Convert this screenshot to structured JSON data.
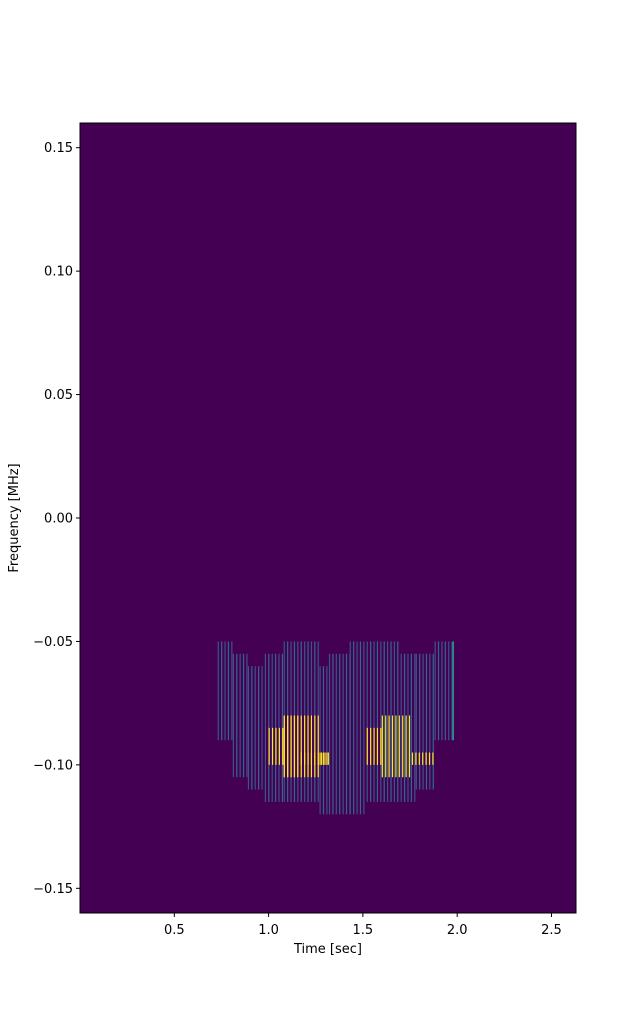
{
  "chart_data": {
    "type": "heatmap",
    "title": "",
    "xlabel": "Time [sec]",
    "ylabel": "Frequency [MHz]",
    "xlim": [
      0.0,
      2.63
    ],
    "ylim": [
      -0.16,
      0.16
    ],
    "x_ticks": [
      0.5,
      1.0,
      1.5,
      2.0,
      2.5
    ],
    "x_tick_labels": [
      "0.5",
      "1.0",
      "1.5",
      "2.0",
      "2.5"
    ],
    "y_ticks": [
      0.15,
      0.1,
      0.05,
      0.0,
      -0.05,
      -0.1,
      -0.15
    ],
    "y_tick_labels": [
      "0.15",
      "0.10",
      "0.05",
      "0.00",
      "−0.05",
      "−0.10",
      "−0.15"
    ],
    "colormap": "viridis",
    "background_color": "#440154",
    "column_width_sec": 0.009,
    "grid": false,
    "legend": "none",
    "low_energy_columns": [
      {
        "t_start": 0.73,
        "t_end": 0.81,
        "f_low": -0.09,
        "f_high": -0.05,
        "color": "#3b528b"
      },
      {
        "t_start": 0.81,
        "t_end": 0.89,
        "f_low": -0.105,
        "f_high": -0.055,
        "color": "#3b528b"
      },
      {
        "t_start": 0.89,
        "t_end": 0.98,
        "f_low": -0.11,
        "f_high": -0.06,
        "color": "#3b528b"
      },
      {
        "t_start": 0.98,
        "t_end": 1.08,
        "f_low": -0.115,
        "f_high": -0.055,
        "color": "#3b528b"
      },
      {
        "t_start": 1.08,
        "t_end": 1.27,
        "f_low": -0.115,
        "f_high": -0.05,
        "color": "#3b528b"
      },
      {
        "t_start": 1.27,
        "t_end": 1.32,
        "f_low": -0.12,
        "f_high": -0.06,
        "color": "#3b528b"
      },
      {
        "t_start": 1.32,
        "t_end": 1.43,
        "f_low": -0.12,
        "f_high": -0.055,
        "color": "#3b528b"
      },
      {
        "t_start": 1.43,
        "t_end": 1.52,
        "f_low": -0.12,
        "f_high": -0.05,
        "color": "#3b528b"
      },
      {
        "t_start": 1.52,
        "t_end": 1.7,
        "f_low": -0.115,
        "f_high": -0.05,
        "color": "#3b528b"
      },
      {
        "t_start": 1.7,
        "t_end": 1.78,
        "f_low": -0.115,
        "f_high": -0.055,
        "color": "#3b528b"
      },
      {
        "t_start": 1.78,
        "t_end": 1.88,
        "f_low": -0.11,
        "f_high": -0.055,
        "color": "#3b528b"
      },
      {
        "t_start": 1.88,
        "t_end": 1.98,
        "f_low": -0.09,
        "f_high": -0.05,
        "color": "#3b528b"
      }
    ],
    "high_energy_blocks": [
      {
        "t_start": 1.0,
        "t_end": 1.08,
        "f_low": -0.1,
        "f_high": -0.085,
        "color": "#fde725"
      },
      {
        "t_start": 1.08,
        "t_end": 1.27,
        "f_low": -0.105,
        "f_high": -0.08,
        "color": "#fde725"
      },
      {
        "t_start": 1.08,
        "t_end": 1.17,
        "f_low": -0.105,
        "f_high": -0.08,
        "color": "#fde725"
      },
      {
        "t_start": 1.17,
        "t_end": 1.32,
        "f_low": -0.1,
        "f_high": -0.095,
        "color": "#fde725"
      },
      {
        "t_start": 1.27,
        "t_end": 1.32,
        "f_low": -0.1,
        "f_high": -0.095,
        "color": "#fde725"
      },
      {
        "t_start": 1.52,
        "t_end": 1.6,
        "f_low": -0.1,
        "f_high": -0.085,
        "color": "#fde725"
      },
      {
        "t_start": 1.6,
        "t_end": 1.76,
        "f_low": -0.105,
        "f_high": -0.08,
        "color": "#fde725"
      },
      {
        "t_start": 1.76,
        "t_end": 1.88,
        "f_low": -0.1,
        "f_high": -0.095,
        "color": "#fde725"
      }
    ],
    "accent_column": {
      "t": 1.975,
      "f_low": -0.09,
      "f_high": -0.05,
      "color": "#21918c"
    }
  }
}
